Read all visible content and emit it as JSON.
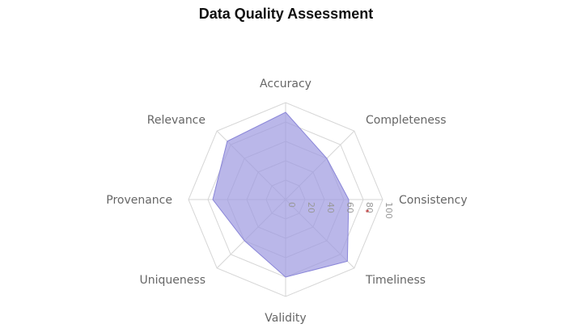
{
  "chart_data": {
    "type": "radar",
    "title": "Data Quality Assessment",
    "categories": [
      "Accuracy",
      "Completeness",
      "Consistency",
      "Timeliness",
      "Validity",
      "Uniqueness",
      "Provenance",
      "Relevance"
    ],
    "series": [
      {
        "values": [
          90,
          60,
          65,
          90,
          80,
          60,
          75,
          85
        ]
      }
    ],
    "rlim": [
      0,
      100
    ],
    "ticks": [
      "0",
      "20",
      "40",
      "60",
      "80",
      "100"
    ],
    "grid": true,
    "legend": "none",
    "fill_color": "#9c98e0",
    "stroke_color": "#8a86d8",
    "marker": {
      "value": 85,
      "color": "#e02020"
    }
  }
}
